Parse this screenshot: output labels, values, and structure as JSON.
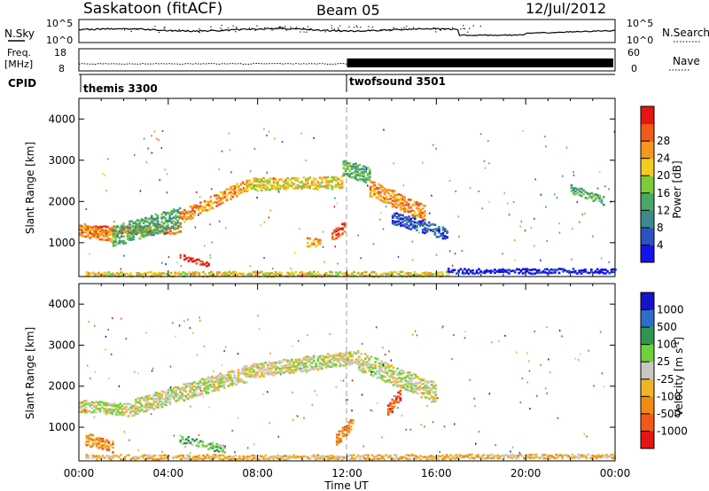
{
  "header": {
    "station": "Saskatoon (fitACF)",
    "beam": "Beam 05",
    "date": "12/Jul/2012"
  },
  "strips": {
    "nsky_label": "N.Sky",
    "nsearch_label": "N.Search",
    "noise_ticks": [
      "10^5",
      "10^0"
    ],
    "freq_label_1": "Freq.",
    "freq_label_2": "[MHz]",
    "freq_ticks": [
      18,
      8
    ],
    "nave_label": "Nave",
    "nave_ticks": [
      60,
      0
    ],
    "cpid_label": "CPID",
    "cpid_segments": [
      {
        "name": "themis 3300",
        "start": 0
      },
      {
        "name": "twofsound 3501",
        "start": 12
      }
    ]
  },
  "axes": {
    "x_ticks": [
      "00:00",
      "04:00",
      "08:00",
      "12:00",
      "16:00",
      "20:00",
      "00:00"
    ],
    "x_label": "Time UT",
    "y_label": "Slant Range [km]",
    "y_ticks": [
      1000,
      2000,
      3000,
      4000
    ]
  },
  "colorbars": {
    "power": {
      "title": "Power [dB]",
      "ticks": [
        4,
        8,
        12,
        16,
        20,
        24,
        28
      ],
      "colors": [
        "#1414e6",
        "#2e52c4",
        "#3d8a8a",
        "#49a867",
        "#7ccc3a",
        "#f2cc1e",
        "#f5961e",
        "#f05a1a",
        "#e61414"
      ]
    },
    "velocity": {
      "title": "Velocity [m s",
      "title_sup": "-1",
      "title_end": "]",
      "ticks": [
        "1000",
        "500",
        "100",
        "25",
        "-25",
        "-100",
        "-500",
        "-1000"
      ],
      "colors": [
        "#1414c8",
        "#2e6ec8",
        "#2e9650",
        "#6ed23c",
        "#c8c8c0",
        "#f0b428",
        "#f08c14",
        "#f05a14",
        "#e61414"
      ]
    }
  },
  "chart_data": {
    "type": "heatmap",
    "x_range_hours": [
      0,
      24
    ],
    "y_range_km": [
      180,
      4500
    ],
    "y_ticks": [
      1000,
      2000,
      3000,
      4000
    ],
    "panels": [
      {
        "quantity": "Power",
        "regions": [
          {
            "t": [
              0,
              4.5
            ],
            "r_start": 1300,
            "r_end": 1300,
            "width": 200,
            "level": 7
          },
          {
            "t": [
              0,
              1.5
            ],
            "r_start": 1300,
            "r_end": 1150,
            "width": 300,
            "level": 6
          },
          {
            "t": [
              1.5,
              4.5
            ],
            "r_start": 1150,
            "r_end": 1600,
            "width": 500,
            "level": 3
          },
          {
            "t": [
              4.5,
              7.5
            ],
            "r_start": 1600,
            "r_end": 2400,
            "width": 300,
            "level": 6
          },
          {
            "t": [
              7.5,
              11.8
            ],
            "r_start": 2400,
            "r_end": 2450,
            "width": 300,
            "level": 5
          },
          {
            "t": [
              11.8,
              13.0
            ],
            "r_start": 2800,
            "r_end": 2600,
            "width": 400,
            "level": 3
          },
          {
            "t": [
              13.0,
              15.5
            ],
            "r_start": 2300,
            "r_end": 1700,
            "width": 400,
            "level": 6
          },
          {
            "t": [
              14.0,
              16.5
            ],
            "r_start": 1600,
            "r_end": 1200,
            "width": 300,
            "level": 1
          },
          {
            "t": [
              4.5,
              5.8
            ],
            "r_start": 650,
            "r_end": 450,
            "width": 120,
            "level": 8
          },
          {
            "t": [
              0.3,
              16.5
            ],
            "r_start": 230,
            "r_end": 230,
            "width": 120,
            "level": 5
          },
          {
            "t": [
              16.5,
              24
            ],
            "r_start": 300,
            "r_end": 300,
            "width": 120,
            "level": 0
          },
          {
            "t": [
              10.2,
              10.8
            ],
            "r_start": 1000,
            "r_end": 1000,
            "width": 200,
            "level": 6
          },
          {
            "t": [
              11.3,
              11.9
            ],
            "r_start": 1150,
            "r_end": 1400,
            "width": 250,
            "level": 7
          },
          {
            "t": [
              22.0,
              23.5
            ],
            "r_start": 2300,
            "r_end": 2000,
            "width": 200,
            "level": 3
          }
        ]
      },
      {
        "quantity": "Velocity",
        "regions": [
          {
            "t": [
              0,
              2.5
            ],
            "r_start": 1500,
            "r_end": 1400,
            "width": 300,
            "level": 4
          },
          {
            "t": [
              2.5,
              7.5
            ],
            "r_start": 1500,
            "r_end": 2300,
            "width": 400,
            "level": 4
          },
          {
            "t": [
              7.5,
              12.5
            ],
            "r_start": 2350,
            "r_end": 2700,
            "width": 350,
            "level": 4
          },
          {
            "t": [
              12.5,
              16.0
            ],
            "r_start": 2600,
            "r_end": 1800,
            "width": 500,
            "level": 4
          },
          {
            "t": [
              0.3,
              1.5
            ],
            "r_start": 700,
            "r_end": 500,
            "width": 300,
            "level": 6
          },
          {
            "t": [
              4.5,
              6.5
            ],
            "r_start": 700,
            "r_end": 450,
            "width": 200,
            "level": 3
          },
          {
            "t": [
              11.5,
              12.3
            ],
            "r_start": 700,
            "r_end": 1100,
            "width": 300,
            "level": 6
          },
          {
            "t": [
              13.8,
              14.4
            ],
            "r_start": 1400,
            "r_end": 1800,
            "width": 300,
            "level": 7
          },
          {
            "t": [
              0.3,
              17.0
            ],
            "r_start": 260,
            "r_end": 260,
            "width": 120,
            "level": 5
          },
          {
            "t": [
              17.0,
              24.0
            ],
            "r_start": 280,
            "r_end": 280,
            "width": 100,
            "level": 5
          }
        ]
      }
    ]
  }
}
